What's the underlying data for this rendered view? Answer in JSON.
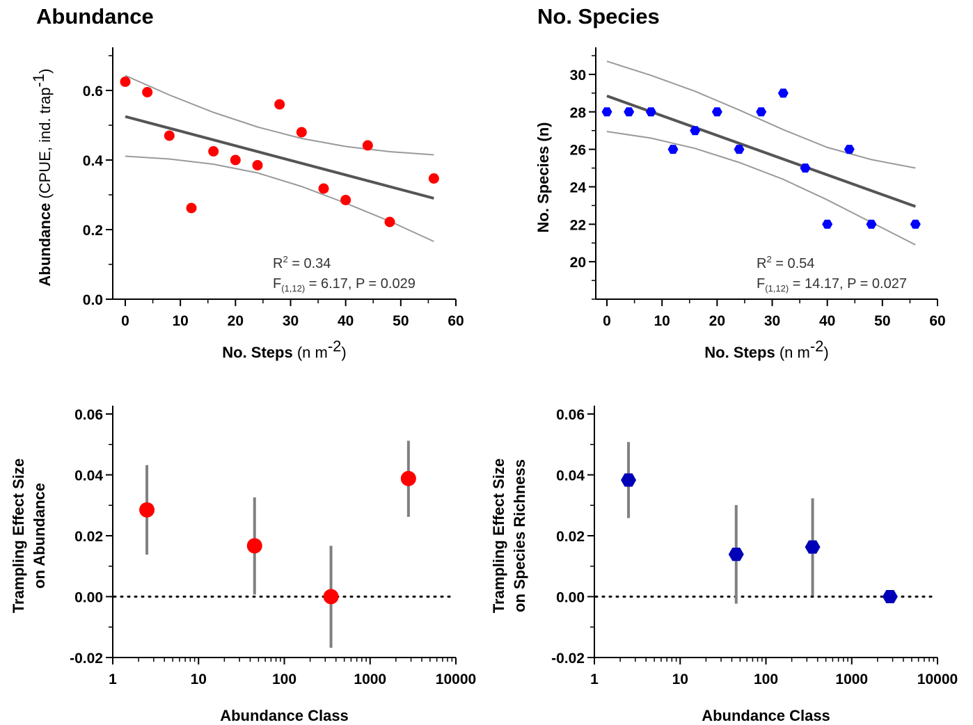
{
  "chart_data": [
    {
      "type": "scatter",
      "title": "Abundance",
      "xlabel": "No. Steps",
      "xlabel_unit": "(n m",
      "xlabel_unit_sup": "-2",
      "xlabel_unit_close": ")",
      "ylabel": "Abundance",
      "ylabel_unit": " (CPUE, ind. trap",
      "ylabel_unit_sup": "-1",
      "ylabel_unit_close": ")",
      "xlim": [
        0,
        60
      ],
      "ylim": [
        0,
        0.7
      ],
      "xticks": [
        0,
        10,
        20,
        30,
        40,
        50,
        60
      ],
      "xtick_labels": [
        "0",
        "10",
        "20",
        "30",
        "40",
        "50",
        "60"
      ],
      "yticks": [
        0.0,
        0.2,
        0.4,
        0.6
      ],
      "ytick_labels": [
        "0.0",
        "0.2",
        "0.4",
        "0.6"
      ],
      "marker": "circle",
      "color": "#ff0000",
      "x": [
        0,
        4,
        8,
        12,
        16,
        20,
        24,
        28,
        32,
        36,
        40,
        44,
        48,
        56
      ],
      "y": [
        0.625,
        0.595,
        0.47,
        0.262,
        0.425,
        0.4,
        0.385,
        0.56,
        0.48,
        0.318,
        0.285,
        0.442,
        0.222,
        0.347
      ],
      "fit_line": {
        "x": [
          0,
          56
        ],
        "y": [
          0.525,
          0.29
        ]
      },
      "ci_upper": {
        "x": [
          0,
          8,
          16,
          24,
          32,
          40,
          48,
          56
        ],
        "y": [
          0.643,
          0.587,
          0.537,
          0.495,
          0.462,
          0.439,
          0.424,
          0.415
        ]
      },
      "ci_lower": {
        "x": [
          0,
          8,
          16,
          24,
          32,
          40,
          48,
          56
        ],
        "y": [
          0.411,
          0.403,
          0.388,
          0.363,
          0.324,
          0.276,
          0.224,
          0.166
        ]
      },
      "annotation_r2_pre": "R",
      "annotation_r2_sup": "2",
      "annotation_r2_post": " = 0.34",
      "annotation_f_pre": "F",
      "annotation_f_sub": "(1,12)",
      "annotation_f_post": " = 6.17, P = 0.029"
    },
    {
      "type": "scatter",
      "title": "No. Species",
      "xlabel": "No. Steps",
      "xlabel_unit": "(n m",
      "xlabel_unit_sup": "-2",
      "xlabel_unit_close": ")",
      "ylabel": "No. Species (n)",
      "xlim": [
        0,
        60
      ],
      "ylim": [
        18,
        31
      ],
      "xticks": [
        0,
        10,
        20,
        30,
        40,
        50,
        60
      ],
      "xtick_labels": [
        "0",
        "10",
        "20",
        "30",
        "40",
        "50",
        "60"
      ],
      "yticks": [
        20,
        22,
        24,
        26,
        28,
        30
      ],
      "ytick_labels": [
        "20",
        "22",
        "24",
        "26",
        "28",
        "30"
      ],
      "marker": "hexagon",
      "color": "#0000ff",
      "x": [
        0,
        4,
        8,
        12,
        16,
        20,
        24,
        28,
        32,
        36,
        40,
        44,
        48,
        56
      ],
      "y": [
        28,
        28,
        28,
        26,
        27,
        28,
        26,
        28,
        29,
        25,
        22,
        26,
        22,
        22
      ],
      "fit_line": {
        "x": [
          0,
          56
        ],
        "y": [
          28.85,
          22.95
        ]
      },
      "ci_upper": {
        "x": [
          0,
          8,
          16,
          24,
          32,
          40,
          48,
          56
        ],
        "y": [
          30.7,
          29.95,
          29.1,
          28.1,
          27.05,
          26.1,
          25.45,
          25.0
        ]
      },
      "ci_lower": {
        "x": [
          0,
          8,
          16,
          24,
          32,
          40,
          48,
          56
        ],
        "y": [
          26.95,
          26.6,
          26.05,
          25.3,
          24.4,
          23.3,
          22.1,
          20.9
        ]
      },
      "annotation_r2_pre": "R",
      "annotation_r2_sup": "2",
      "annotation_r2_post": " = 0.54",
      "annotation_f_pre": "F",
      "annotation_f_sub": "(1,12)",
      "annotation_f_post": " = 14.17, P = 0.027"
    },
    {
      "type": "scatter",
      "xlabel": "Abundance Class",
      "ylabel_line1": "Trampling Effect Size",
      "ylabel_line2": "on Abundance",
      "xscale": "log",
      "xlim": [
        1,
        10000
      ],
      "ylim": [
        -0.02,
        0.06
      ],
      "xticks": [
        1,
        10,
        100,
        1000,
        10000
      ],
      "xtick_labels": [
        "1",
        "10",
        "100",
        "1000",
        "10000"
      ],
      "yticks": [
        -0.02,
        0.0,
        0.02,
        0.04,
        0.06
      ],
      "ytick_labels": [
        "-0.02",
        "0.00",
        "0.02",
        "0.04",
        "0.06"
      ],
      "marker": "circle",
      "color": "#ff0000",
      "reference_line_y": 0,
      "x": [
        2.5,
        45,
        350,
        2800
      ],
      "y": [
        0.0285,
        0.0167,
        0.0,
        0.0388
      ],
      "err_low": [
        0.0138,
        0.0007,
        -0.0168,
        0.0262
      ],
      "err_high": [
        0.0432,
        0.0326,
        0.0167,
        0.0512
      ]
    },
    {
      "type": "scatter",
      "xlabel": "Abundance Class",
      "ylabel_line1": "Trampling Effect Size",
      "ylabel_line2": "on Species Richness",
      "xscale": "log",
      "xlim": [
        1,
        10000
      ],
      "ylim": [
        -0.02,
        0.06
      ],
      "xticks": [
        1,
        10,
        100,
        1000,
        10000
      ],
      "xtick_labels": [
        "1",
        "10",
        "100",
        "1000",
        "10000"
      ],
      "yticks": [
        -0.02,
        0.0,
        0.02,
        0.04,
        0.06
      ],
      "ytick_labels": [
        "-0.02",
        "0.00",
        "0.02",
        "0.04",
        "0.06"
      ],
      "marker": "hexagon",
      "color": "#0000b8",
      "reference_line_y": 0,
      "x": [
        2.5,
        45,
        350,
        2800
      ],
      "y": [
        0.0383,
        0.0139,
        0.0163,
        0.0
      ],
      "err_low": [
        0.0258,
        -0.0023,
        0.0003,
        0.0
      ],
      "err_high": [
        0.0508,
        0.0301,
        0.0323,
        0.0
      ]
    }
  ]
}
